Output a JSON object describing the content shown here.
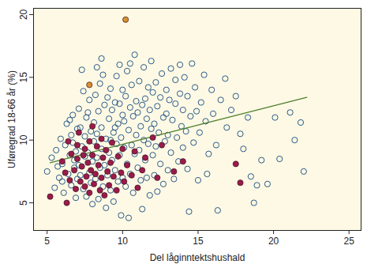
{
  "chart_data": {
    "type": "scatter",
    "x_label": "Del låginntektshushald",
    "y_label": "Uføregrad 18-66 år (%)",
    "xlim": [
      4.1,
      25.8
    ],
    "ylim": [
      2.8,
      20.5
    ],
    "xticks": [
      5,
      10,
      15,
      20,
      25
    ],
    "yticks": [
      5,
      10,
      15,
      20
    ],
    "grid": false,
    "series": [
      {
        "color": "#2b5a8a",
        "marker": "open",
        "x": [
          5.0,
          5.3,
          5.5,
          5.6,
          5.8,
          5.9,
          6.0,
          6.1,
          6.2,
          6.3,
          5.7,
          6.0,
          6.4,
          6.5,
          6.6,
          6.6,
          6.7,
          6.8,
          6.9,
          6.9,
          7.0,
          6.5,
          6.8,
          7.0,
          6.7,
          7.1,
          7.1,
          7.2,
          7.3,
          7.3,
          7.4,
          7.5,
          7.5,
          7.6,
          7.6,
          7.7,
          7.8,
          7.8,
          7.9,
          7.9,
          7.2,
          7.4,
          7.7,
          8.0,
          8.0,
          8.1,
          8.1,
          8.2,
          8.2,
          8.3,
          8.3,
          8.4,
          8.4,
          8.5,
          8.5,
          8.6,
          8.6,
          8.7,
          8.7,
          8.8,
          8.8,
          8.9,
          8.9,
          9.0,
          9.0,
          8.3,
          8.6,
          9.1,
          9.1,
          9.2,
          9.2,
          9.3,
          9.3,
          9.4,
          9.4,
          9.5,
          9.5,
          9.6,
          9.6,
          9.7,
          9.7,
          9.8,
          9.8,
          9.9,
          9.9,
          10.0,
          10.0,
          9.2,
          9.5,
          9.8,
          10.0,
          10.1,
          10.1,
          10.2,
          10.2,
          10.3,
          10.3,
          10.4,
          10.4,
          10.5,
          10.5,
          10.6,
          10.6,
          10.7,
          10.7,
          10.8,
          10.8,
          10.9,
          10.9,
          11.0,
          11.0,
          10.5,
          11.1,
          11.1,
          11.2,
          11.2,
          11.3,
          11.3,
          11.4,
          11.4,
          11.5,
          11.5,
          11.6,
          11.6,
          11.7,
          11.7,
          11.8,
          11.8,
          11.9,
          11.9,
          12.0,
          12.0,
          12.1,
          12.1,
          12.2,
          12.2,
          12.3,
          12.3,
          12.4,
          12.5,
          12.5,
          12.6,
          12.7,
          12.7,
          12.8,
          12.9,
          12.9,
          13.0,
          13.0,
          13.1,
          13.2,
          13.2,
          13.3,
          13.4,
          13.5,
          13.5,
          13.6,
          13.7,
          13.8,
          13.8,
          13.9,
          14.0,
          14.0,
          14.1,
          14.2,
          14.3,
          14.3,
          14.5,
          14.6,
          14.7,
          14.8,
          14.9,
          15.0,
          14.4,
          15.1,
          15.2,
          15.4,
          15.5,
          15.7,
          15.9,
          16.0,
          16.2,
          16.3,
          16.5,
          16.8,
          16.9,
          15.6,
          17.2,
          17.5,
          17.8,
          18.0,
          18.3,
          18.7,
          18.9,
          19.2,
          19.6,
          20.1,
          20.4,
          21.1,
          21.4,
          21.8,
          22.0,
          18.5
        ],
        "values": [
          7.5,
          8.6,
          6.2,
          9.2,
          7.0,
          10.1,
          8.1,
          5.8,
          9.6,
          11.3,
          7.9,
          6.7,
          7.3,
          8.8,
          10.4,
          6.4,
          12.0,
          7.8,
          9.1,
          5.4,
          10.9,
          11.6,
          8.4,
          6.9,
          9.8,
          8.0,
          12.5,
          7.2,
          9.5,
          15.6,
          6.1,
          10.3,
          8.7,
          11.8,
          5.5,
          9.0,
          13.2,
          7.4,
          10.7,
          6.6,
          11.0,
          13.9,
          12.2,
          8.3,
          4.9,
          9.9,
          11.4,
          6.9,
          13.6,
          8.6,
          10.5,
          5.3,
          12.3,
          7.8,
          14.5,
          9.3,
          11.0,
          6.3,
          15.2,
          8.0,
          12.8,
          10.1,
          4.6,
          7.2,
          13.4,
          15.8,
          16.5,
          9.0,
          11.7,
          6.0,
          14.1,
          8.4,
          12.4,
          10.6,
          5.1,
          7.6,
          13.0,
          9.7,
          15.1,
          11.3,
          6.7,
          8.8,
          12.9,
          10.2,
          4.0,
          7.0,
          14.0,
          10.0,
          11.0,
          16.0,
          12.0,
          9.4,
          11.5,
          6.3,
          13.5,
          8.1,
          15.5,
          10.8,
          3.8,
          12.6,
          7.3,
          9.6,
          14.4,
          11.9,
          5.8,
          8.9,
          16.8,
          10.4,
          13.1,
          7.8,
          12.2,
          16.1,
          9.2,
          14.7,
          6.8,
          11.1,
          12.8,
          4.5,
          10.0,
          15.8,
          8.4,
          13.3,
          11.7,
          7.0,
          9.7,
          14.2,
          12.4,
          5.6,
          10.9,
          16.3,
          8.8,
          13.8,
          11.3,
          7.2,
          14.6,
          9.5,
          12.7,
          5.9,
          10.6,
          13.4,
          8.1,
          15.3,
          11.8,
          6.5,
          9.9,
          14.0,
          12.1,
          10.4,
          7.6,
          13.2,
          15.7,
          9.0,
          11.6,
          6.9,
          12.9,
          14.8,
          10.2,
          8.3,
          13.7,
          16.0,
          11.1,
          9.4,
          12.4,
          15.0,
          10.7,
          7.7,
          13.5,
          11.9,
          16.1,
          9.8,
          14.2,
          12.3,
          6.8,
          4.3,
          10.6,
          13.0,
          15.2,
          11.5,
          8.9,
          14.0,
          12.1,
          9.6,
          4.4,
          13.2,
          14.9,
          11.0,
          7.3,
          12.4,
          13.5,
          10.5,
          9.3,
          11.8,
          5.0,
          6.4,
          8.4,
          6.5,
          11.8,
          8.5,
          12.2,
          10.0,
          11.4,
          7.5,
          7.1
        ]
      },
      {
        "type": "line",
        "color": "#4f7f2f",
        "line_style": "solid",
        "x": [
          5.2,
          22.2
        ],
        "values": [
          8.2,
          13.4
        ]
      },
      {
        "color": "#9b1b4a",
        "marker": "filled",
        "x": [
          5.2,
          6.3,
          6.0,
          6.2,
          6.5,
          6.6,
          6.8,
          6.9,
          7.0,
          7.0,
          7.2,
          7.3,
          7.4,
          7.5,
          7.5,
          7.6,
          7.7,
          7.8,
          7.8,
          7.9,
          8.0,
          8.1,
          8.2,
          8.3,
          8.4,
          8.5,
          8.6,
          8.6,
          8.7,
          8.8,
          8.9,
          9.0,
          9.1,
          9.2,
          9.3,
          9.4,
          9.6,
          9.7,
          9.9,
          10.0,
          10.1,
          10.3,
          10.6,
          10.8,
          11.0,
          11.3,
          11.5,
          12.0,
          12.3,
          12.6,
          13.4,
          14.0,
          17.5,
          17.8,
          6.4,
          7.1,
          8.0
        ],
        "values": [
          5.5,
          5.0,
          8.3,
          7.4,
          6.8,
          8.9,
          7.6,
          6.1,
          8.5,
          9.6,
          6.7,
          7.9,
          8.8,
          6.3,
          9.3,
          7.1,
          8.2,
          5.8,
          9.9,
          7.6,
          8.8,
          6.5,
          7.3,
          9.5,
          8.0,
          6.0,
          7.0,
          10.1,
          8.6,
          5.6,
          9.2,
          7.5,
          6.4,
          8.2,
          9.8,
          7.1,
          6.0,
          8.7,
          7.4,
          9.3,
          6.7,
          8.0,
          7.2,
          9.1,
          6.2,
          7.6,
          8.6,
          10.2,
          7.0,
          9.6,
          7.5,
          8.3,
          8.1,
          6.6,
          9.9,
          10.6,
          11.1
        ]
      },
      {
        "color": "#d8902f",
        "marker": "filled",
        "x": [
          10.2,
          7.8
        ],
        "values": [
          19.6,
          14.4
        ]
      }
    ]
  }
}
